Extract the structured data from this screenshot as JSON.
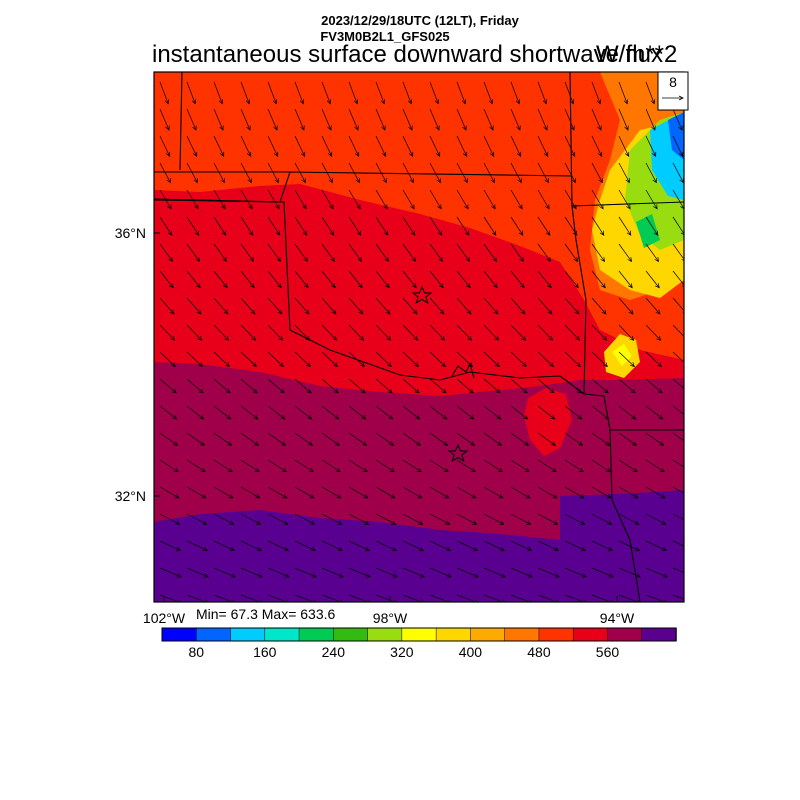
{
  "header": {
    "line1": "2023/12/29/18UTC (12LT), Friday",
    "line2": "FV3M0B2L1_GFS025",
    "title": "instantaneous surface downward shortwave flux",
    "units": "W/m**2"
  },
  "map": {
    "lat_labels": [
      "36°N",
      "32°N"
    ],
    "lon_labels": [
      "102°W",
      "98°W",
      "94°W"
    ],
    "vector_ref": "8"
  },
  "stats": {
    "text": "Min= 67.3 Max= 633.6"
  },
  "colorbar": {
    "colors": [
      "#0000ff",
      "#0066ff",
      "#00ccff",
      "#00e6c8",
      "#00cc55",
      "#33bb11",
      "#99dd11",
      "#ffff00",
      "#ffd700",
      "#ffaa00",
      "#ff7700",
      "#ff3300",
      "#e8001a",
      "#a0004a",
      "#5a0090"
    ],
    "tick_labels": [
      "80",
      "160",
      "240",
      "320",
      "400",
      "480",
      "560"
    ]
  },
  "colors": {
    "red_orange": "#ff3300",
    "red": "#e8001a",
    "maroon": "#a0004a",
    "purple": "#5a0090"
  }
}
